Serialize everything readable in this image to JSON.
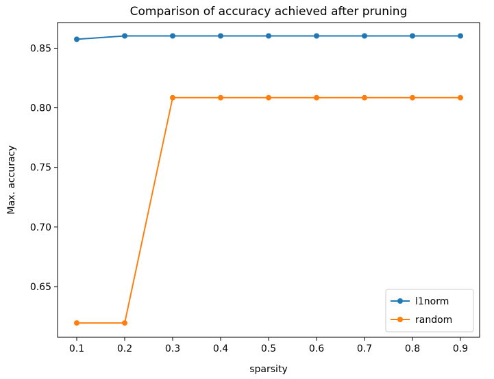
{
  "chart_data": {
    "type": "line",
    "title": "Comparison of accuracy achieved after pruning",
    "xlabel": "sparsity",
    "ylabel": "Max. accuracy",
    "x": [
      0.1,
      0.2,
      0.3,
      0.4,
      0.5,
      0.6,
      0.7,
      0.8,
      0.9
    ],
    "x_tick_labels": [
      "0.1",
      "0.2",
      "0.3",
      "0.4",
      "0.5",
      "0.6",
      "0.7",
      "0.8",
      "0.9"
    ],
    "y_ticks": [
      0.65,
      0.7,
      0.75,
      0.8,
      0.85
    ],
    "y_tick_labels": [
      "0.65",
      "0.70",
      "0.75",
      "0.80",
      "0.85"
    ],
    "xlim": [
      0.06,
      0.94
    ],
    "ylim": [
      0.6075,
      0.8715
    ],
    "grid": false,
    "legend_position": "lower right",
    "series": [
      {
        "name": "l1norm",
        "color": "#1f77b4",
        "marker": "circle",
        "values": [
          0.8575,
          0.8603,
          0.8603,
          0.8603,
          0.8603,
          0.8603,
          0.8603,
          0.8603,
          0.8603
        ]
      },
      {
        "name": "random",
        "color": "#ff7f0e",
        "marker": "circle",
        "values": [
          0.6195,
          0.6195,
          0.8085,
          0.8085,
          0.8085,
          0.8085,
          0.8085,
          0.8085,
          0.8085
        ]
      }
    ]
  }
}
